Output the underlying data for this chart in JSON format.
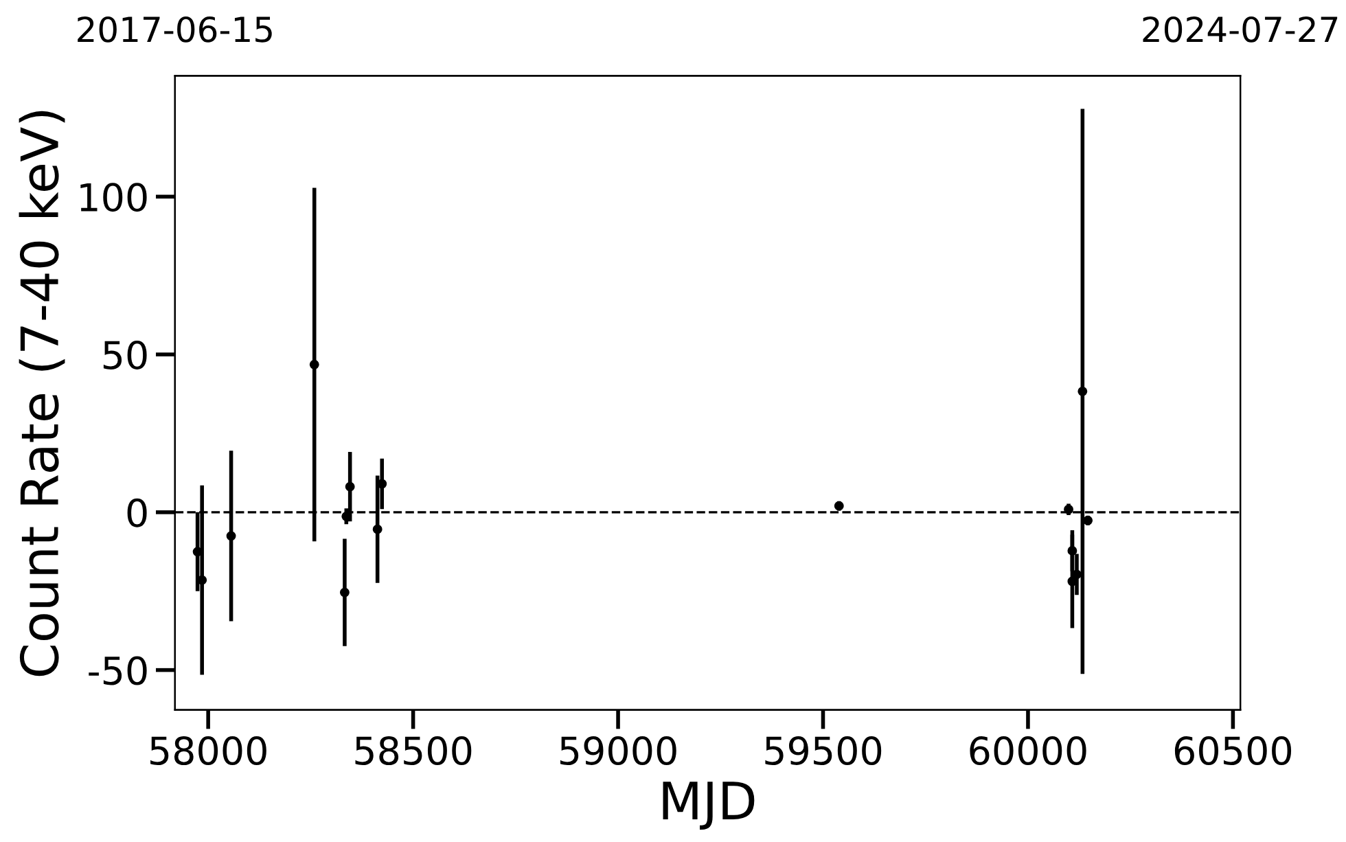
{
  "chart_data": {
    "type": "scatter",
    "xlabel": "MJD",
    "ylabel": "Count Rate (7-40 keV)",
    "x": [
      57974,
      57985,
      58056,
      58259,
      58333,
      58337,
      58346,
      58413,
      58424,
      59539,
      60099,
      60133,
      60146,
      60108,
      60108,
      60119
    ],
    "series": [
      {
        "color": "#000000",
        "values": [
          -12.5,
          -21.5,
          -7.5,
          46.8,
          -25.4,
          -1.3,
          8.1,
          -5.4,
          9,
          2,
          0.9,
          38.3,
          -2.6,
          -12.2,
          -21.9,
          -19.7
        ],
        "errors": [
          12.5,
          30,
          27,
          56,
          17,
          2.5,
          11,
          17,
          8,
          1.5,
          1.8,
          89.5,
          1.5,
          6.5,
          14.8,
          6.5
        ]
      }
    ],
    "marker": "circle",
    "grid": false,
    "xlim": [
      57919,
      60518
    ],
    "xticks": [
      58000,
      58500,
      59000,
      59500,
      60000,
      60500
    ],
    "x2lim": [
      "2017-06-15",
      "2024-07-27"
    ],
    "x2ticks": [
      "2017-06-15",
      "2024-07-27"
    ],
    "ylim": [
      -62.6,
      138.3
    ],
    "yticks": [
      -50,
      0,
      50,
      100
    ],
    "ref_lines": [
      {
        "axis": "y",
        "value": 0,
        "color": "#000000",
        "line_style": "dashed"
      }
    ]
  }
}
